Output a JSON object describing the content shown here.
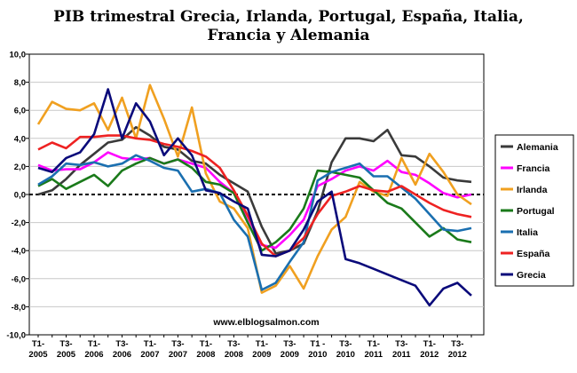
{
  "chart_data": {
    "type": "line",
    "title_lines": [
      "PIB trimestral Grecia, Irlanda, Portugal, España, Italia,",
      "Francia y Alemania"
    ],
    "watermark": "www.elblogsalmon.com",
    "ylim": [
      -10,
      10
    ],
    "y_ticks": [
      10,
      8,
      6,
      4,
      2,
      0,
      -2,
      -4,
      -6,
      -8,
      -10
    ],
    "y_tick_labels": [
      "10,0",
      "8,0",
      "6,0",
      "4,0",
      "2,0",
      "0,0",
      "-2,0",
      "-4,0",
      "-6,0",
      "-8,0",
      "-10,0"
    ],
    "x_tick_labels": [
      {
        "index": 0,
        "line1": "T1-",
        "line2": "2005"
      },
      {
        "index": 2,
        "line1": "T3-",
        "line2": "2005"
      },
      {
        "index": 4,
        "line1": "T1-",
        "line2": "2006"
      },
      {
        "index": 6,
        "line1": "T3-",
        "line2": "2006"
      },
      {
        "index": 8,
        "line1": "T1-",
        "line2": "2007"
      },
      {
        "index": 10,
        "line1": "T3-",
        "line2": "2007"
      },
      {
        "index": 12,
        "line1": "T1-",
        "line2": "2008"
      },
      {
        "index": 14,
        "line1": "T3-",
        "line2": "2008"
      },
      {
        "index": 16,
        "line1": "T1-",
        "line2": "2009"
      },
      {
        "index": 18,
        "line1": "T3-",
        "line2": "2009"
      },
      {
        "index": 20,
        "line1": "T1 -",
        "line2": "2010"
      },
      {
        "index": 22,
        "line1": "T3-",
        "line2": "2010"
      },
      {
        "index": 24,
        "line1": "T1-",
        "line2": "2011"
      },
      {
        "index": 26,
        "line1": "T3-",
        "line2": "2011"
      },
      {
        "index": 28,
        "line1": "T1-",
        "line2": "2012"
      },
      {
        "index": 30,
        "line1": "T3-",
        "line2": "2012"
      }
    ],
    "zero_line": true,
    "legend_position": "right",
    "series": [
      {
        "name": "Alemania",
        "color": "#3a3a3a",
        "values": [
          0.0,
          0.3,
          1.1,
          2.1,
          2.9,
          3.7,
          3.9,
          4.8,
          4.2,
          3.4,
          3.2,
          2.4,
          2.2,
          1.4,
          0.8,
          0.2,
          -2.3,
          -4.2,
          -4.0,
          -3.5,
          -1.2,
          2.3,
          4.0,
          4.0,
          3.8,
          4.6,
          2.8,
          2.7,
          2.0,
          1.2,
          1.0,
          0.9
        ]
      },
      {
        "name": "Francia",
        "color": "#ff00ff",
        "values": [
          2.1,
          1.7,
          1.8,
          1.8,
          2.3,
          3.0,
          2.6,
          2.5,
          2.6,
          2.2,
          2.5,
          2.2,
          1.9,
          0.9,
          0.1,
          -1.6,
          -3.6,
          -3.8,
          -2.9,
          -1.8,
          0.6,
          1.1,
          1.7,
          2.0,
          1.7,
          2.4,
          1.6,
          1.4,
          0.8,
          0.1,
          -0.2,
          0.0
        ]
      },
      {
        "name": "Irlanda",
        "color": "#f0a020",
        "values": [
          5.0,
          6.6,
          6.1,
          6.0,
          6.5,
          4.6,
          6.9,
          4.0,
          7.8,
          5.4,
          2.7,
          6.2,
          1.5,
          -0.5,
          -1.0,
          -2.4,
          -7.0,
          -6.5,
          -5.1,
          -6.7,
          -4.4,
          -2.5,
          -1.6,
          0.9,
          0.2,
          -0.1,
          2.6,
          0.7,
          2.9,
          1.6,
          0.0,
          -0.7
        ]
      },
      {
        "name": "Portugal",
        "color": "#1a7a1a",
        "values": [
          0.6,
          1.1,
          0.4,
          0.9,
          1.4,
          0.6,
          1.7,
          2.2,
          2.6,
          2.2,
          2.5,
          1.9,
          0.9,
          0.7,
          0.1,
          -2.0,
          -4.0,
          -3.4,
          -2.5,
          -1.0,
          1.7,
          1.6,
          1.4,
          1.2,
          0.3,
          -0.6,
          -1.0,
          -2.0,
          -3.0,
          -2.4,
          -3.2,
          -3.4
        ]
      },
      {
        "name": "Italia",
        "color": "#1a6fb0",
        "values": [
          0.7,
          1.3,
          2.2,
          2.1,
          2.3,
          2.0,
          2.2,
          2.8,
          2.4,
          1.9,
          1.7,
          0.2,
          0.4,
          0.1,
          -1.8,
          -3.0,
          -6.8,
          -6.3,
          -4.8,
          -3.4,
          1.0,
          1.6,
          1.9,
          2.2,
          1.3,
          1.3,
          0.5,
          -0.3,
          -1.4,
          -2.5,
          -2.6,
          -2.4
        ]
      },
      {
        "name": "España",
        "color": "#ee2222",
        "values": [
          3.2,
          3.7,
          3.3,
          4.1,
          4.1,
          4.2,
          4.2,
          4.0,
          3.9,
          3.6,
          3.4,
          3.1,
          2.7,
          1.9,
          0.3,
          -1.5,
          -3.5,
          -4.4,
          -4.0,
          -3.1,
          -1.4,
          -0.1,
          0.2,
          0.6,
          0.3,
          0.2,
          0.6,
          0.0,
          -0.6,
          -1.1,
          -1.4,
          -1.6
        ]
      },
      {
        "name": "Grecia",
        "color": "#0a0a7a",
        "values": [
          1.9,
          1.6,
          2.6,
          3.0,
          4.3,
          7.5,
          4.0,
          6.5,
          5.2,
          2.8,
          4.0,
          2.8,
          0.3,
          0.1,
          -0.5,
          -1.0,
          -4.3,
          -4.4,
          -4.0,
          -2.5,
          -0.5,
          0.2,
          -4.6,
          -4.9,
          -5.3,
          -5.7,
          -6.1,
          -6.5,
          -7.9,
          -6.7,
          -6.3,
          -7.2
        ]
      }
    ]
  }
}
